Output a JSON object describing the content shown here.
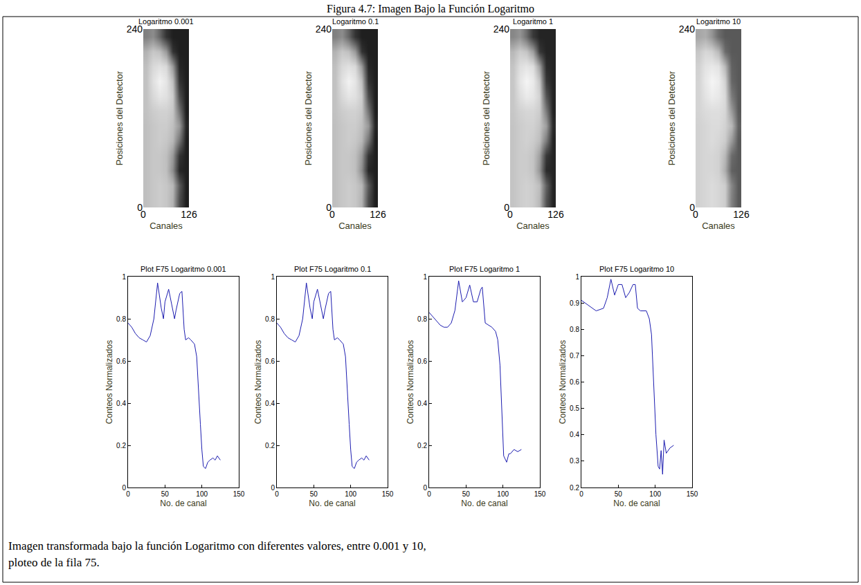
{
  "title": "Figura 4.7: Imagen Bajo la Función Logaritmo",
  "caption": [
    "Imagen transformada bajo la función Logaritmo con diferentes valores, entre 0.001 y 10,",
    "ploteo de la fila 75."
  ],
  "chart_data": [
    {
      "type": "heatmap",
      "title": "Logaritmo 0.001",
      "xlabel": "Canales",
      "ylabel": "Posiciones del Detector",
      "xlim": [
        0,
        126
      ],
      "ylim": [
        0,
        240
      ],
      "xticks": [
        0,
        126
      ],
      "yticks": [
        0,
        240
      ],
      "zlim": [
        0,
        1
      ],
      "x_edges": [
        0,
        18,
        36,
        54,
        72,
        90,
        108,
        126
      ],
      "y_edges": [
        0,
        20,
        40,
        60,
        80,
        100,
        120,
        140,
        160,
        180,
        200,
        220,
        240
      ],
      "cells": [
        [
          0.75,
          0.78,
          0.8,
          0.78,
          0.7,
          0.3,
          0.12
        ],
        [
          0.75,
          0.78,
          0.8,
          0.78,
          0.72,
          0.35,
          0.12
        ],
        [
          0.75,
          0.78,
          0.78,
          0.75,
          0.55,
          0.15,
          0.12
        ],
        [
          0.75,
          0.78,
          0.78,
          0.75,
          0.6,
          0.2,
          0.12
        ],
        [
          0.75,
          0.78,
          0.8,
          0.78,
          0.72,
          0.45,
          0.12
        ],
        [
          0.75,
          0.78,
          0.8,
          0.8,
          0.75,
          0.6,
          0.15
        ],
        [
          0.76,
          0.8,
          0.82,
          0.82,
          0.78,
          0.45,
          0.12
        ],
        [
          0.76,
          0.85,
          0.9,
          0.88,
          0.8,
          0.3,
          0.12
        ],
        [
          0.76,
          0.88,
          0.95,
          0.9,
          0.75,
          0.2,
          0.12
        ],
        [
          0.75,
          0.85,
          0.88,
          0.85,
          0.6,
          0.15,
          0.12
        ],
        [
          0.7,
          0.78,
          0.75,
          0.6,
          0.2,
          0.12,
          0.12
        ],
        [
          0.5,
          0.55,
          0.4,
          0.2,
          0.12,
          0.12,
          0.12
        ]
      ]
    },
    {
      "type": "heatmap",
      "title": "Logaritmo 0.1",
      "xlabel": "Canales",
      "ylabel": "Posiciones del Detector",
      "xlim": [
        0,
        126
      ],
      "ylim": [
        0,
        240
      ],
      "xticks": [
        0,
        126
      ],
      "yticks": [
        0,
        240
      ],
      "zlim": [
        0,
        1
      ],
      "x_edges": [
        0,
        18,
        36,
        54,
        72,
        90,
        108,
        126
      ],
      "y_edges": [
        0,
        20,
        40,
        60,
        80,
        100,
        120,
        140,
        160,
        180,
        200,
        220,
        240
      ],
      "cells": [
        [
          0.75,
          0.78,
          0.8,
          0.78,
          0.7,
          0.3,
          0.12
        ],
        [
          0.75,
          0.78,
          0.8,
          0.78,
          0.72,
          0.35,
          0.12
        ],
        [
          0.75,
          0.78,
          0.78,
          0.75,
          0.55,
          0.15,
          0.12
        ],
        [
          0.75,
          0.78,
          0.78,
          0.75,
          0.6,
          0.2,
          0.12
        ],
        [
          0.75,
          0.78,
          0.8,
          0.78,
          0.72,
          0.45,
          0.12
        ],
        [
          0.75,
          0.78,
          0.8,
          0.8,
          0.75,
          0.6,
          0.15
        ],
        [
          0.76,
          0.8,
          0.82,
          0.82,
          0.78,
          0.45,
          0.12
        ],
        [
          0.76,
          0.85,
          0.9,
          0.88,
          0.8,
          0.3,
          0.12
        ],
        [
          0.76,
          0.88,
          0.95,
          0.9,
          0.75,
          0.2,
          0.12
        ],
        [
          0.75,
          0.85,
          0.88,
          0.85,
          0.6,
          0.15,
          0.12
        ],
        [
          0.7,
          0.78,
          0.75,
          0.6,
          0.2,
          0.12,
          0.12
        ],
        [
          0.5,
          0.55,
          0.4,
          0.2,
          0.12,
          0.12,
          0.12
        ]
      ]
    },
    {
      "type": "heatmap",
      "title": "Logaritmo 1",
      "xlabel": "Canales",
      "ylabel": "Posiciones del Detector",
      "xlim": [
        0,
        126
      ],
      "ylim": [
        0,
        240
      ],
      "xticks": [
        0,
        126
      ],
      "yticks": [
        0,
        240
      ],
      "zlim": [
        0,
        1
      ],
      "x_edges": [
        0,
        18,
        36,
        54,
        72,
        90,
        108,
        126
      ],
      "y_edges": [
        0,
        20,
        40,
        60,
        80,
        100,
        120,
        140,
        160,
        180,
        200,
        220,
        240
      ],
      "cells": [
        [
          0.77,
          0.8,
          0.82,
          0.8,
          0.72,
          0.33,
          0.14
        ],
        [
          0.77,
          0.8,
          0.82,
          0.8,
          0.74,
          0.38,
          0.14
        ],
        [
          0.77,
          0.8,
          0.8,
          0.77,
          0.58,
          0.17,
          0.14
        ],
        [
          0.77,
          0.8,
          0.8,
          0.77,
          0.62,
          0.22,
          0.14
        ],
        [
          0.77,
          0.8,
          0.82,
          0.8,
          0.74,
          0.48,
          0.14
        ],
        [
          0.77,
          0.8,
          0.82,
          0.82,
          0.77,
          0.62,
          0.17
        ],
        [
          0.78,
          0.82,
          0.84,
          0.84,
          0.8,
          0.48,
          0.14
        ],
        [
          0.78,
          0.87,
          0.92,
          0.9,
          0.82,
          0.33,
          0.14
        ],
        [
          0.78,
          0.9,
          0.96,
          0.92,
          0.77,
          0.22,
          0.14
        ],
        [
          0.77,
          0.87,
          0.9,
          0.87,
          0.62,
          0.17,
          0.14
        ],
        [
          0.72,
          0.8,
          0.77,
          0.62,
          0.22,
          0.14,
          0.14
        ],
        [
          0.53,
          0.58,
          0.43,
          0.22,
          0.14,
          0.14,
          0.14
        ]
      ]
    },
    {
      "type": "heatmap",
      "title": "Logaritmo 10",
      "xlabel": "Canales",
      "ylabel": "Posiciones del Detector",
      "xlim": [
        0,
        126
      ],
      "ylim": [
        0,
        240
      ],
      "xticks": [
        0,
        126
      ],
      "yticks": [
        0,
        240
      ],
      "zlim": [
        0,
        1
      ],
      "x_edges": [
        0,
        18,
        36,
        54,
        72,
        90,
        108,
        126
      ],
      "y_edges": [
        0,
        20,
        40,
        60,
        80,
        100,
        120,
        140,
        160,
        180,
        200,
        220,
        240
      ],
      "cells": [
        [
          0.82,
          0.84,
          0.86,
          0.84,
          0.8,
          0.5,
          0.35
        ],
        [
          0.82,
          0.84,
          0.86,
          0.84,
          0.8,
          0.52,
          0.35
        ],
        [
          0.82,
          0.84,
          0.84,
          0.82,
          0.68,
          0.38,
          0.35
        ],
        [
          0.82,
          0.84,
          0.84,
          0.82,
          0.72,
          0.42,
          0.35
        ],
        [
          0.82,
          0.84,
          0.86,
          0.84,
          0.8,
          0.6,
          0.35
        ],
        [
          0.82,
          0.84,
          0.86,
          0.86,
          0.82,
          0.72,
          0.38
        ],
        [
          0.83,
          0.86,
          0.87,
          0.87,
          0.84,
          0.6,
          0.35
        ],
        [
          0.83,
          0.89,
          0.93,
          0.91,
          0.85,
          0.48,
          0.35
        ],
        [
          0.83,
          0.91,
          0.96,
          0.93,
          0.82,
          0.4,
          0.35
        ],
        [
          0.82,
          0.89,
          0.91,
          0.89,
          0.72,
          0.38,
          0.35
        ],
        [
          0.78,
          0.84,
          0.82,
          0.72,
          0.42,
          0.35,
          0.35
        ],
        [
          0.65,
          0.68,
          0.58,
          0.42,
          0.35,
          0.35,
          0.35
        ]
      ]
    },
    {
      "type": "line",
      "title": "Plot F75 Logaritmo 0.001",
      "xlabel": "No. de canal",
      "ylabel": "Conteos Normalizados",
      "xlim": [
        0,
        150
      ],
      "ylim": [
        0,
        1
      ],
      "xticks": [
        0,
        50,
        100,
        150
      ],
      "yticks": [
        0,
        0.2,
        0.4,
        0.6,
        0.8,
        1
      ],
      "color": "#1c1cb0",
      "grid": false,
      "x": [
        0,
        5,
        10,
        15,
        20,
        25,
        30,
        35,
        40,
        45,
        48,
        50,
        55,
        60,
        63,
        65,
        70,
        73,
        76,
        78,
        82,
        85,
        90,
        93,
        96,
        98,
        100,
        102,
        105,
        108,
        111,
        115,
        118,
        121,
        125
      ],
      "values": [
        0.78,
        0.76,
        0.73,
        0.71,
        0.7,
        0.69,
        0.72,
        0.8,
        0.97,
        0.85,
        0.8,
        0.88,
        0.94,
        0.85,
        0.8,
        0.84,
        0.92,
        0.93,
        0.75,
        0.7,
        0.71,
        0.7,
        0.68,
        0.62,
        0.45,
        0.3,
        0.18,
        0.1,
        0.09,
        0.12,
        0.13,
        0.14,
        0.13,
        0.15,
        0.13
      ]
    },
    {
      "type": "line",
      "title": "Plot F75 Logaritmo 0.1",
      "xlabel": "No. de canal",
      "ylabel": "Conteos Normalizados",
      "xlim": [
        0,
        150
      ],
      "ylim": [
        0,
        1
      ],
      "xticks": [
        0,
        50,
        100,
        150
      ],
      "yticks": [
        0,
        0.2,
        0.4,
        0.6,
        0.8,
        1
      ],
      "color": "#1c1cb0",
      "grid": false,
      "x": [
        0,
        5,
        10,
        15,
        20,
        25,
        30,
        35,
        40,
        45,
        48,
        50,
        55,
        60,
        63,
        65,
        70,
        73,
        76,
        78,
        82,
        85,
        90,
        93,
        96,
        98,
        100,
        102,
        105,
        108,
        111,
        115,
        118,
        121,
        125
      ],
      "values": [
        0.78,
        0.76,
        0.73,
        0.71,
        0.7,
        0.69,
        0.72,
        0.8,
        0.97,
        0.85,
        0.8,
        0.88,
        0.94,
        0.85,
        0.8,
        0.84,
        0.92,
        0.93,
        0.75,
        0.7,
        0.71,
        0.7,
        0.68,
        0.62,
        0.45,
        0.3,
        0.18,
        0.1,
        0.09,
        0.12,
        0.13,
        0.14,
        0.13,
        0.15,
        0.13
      ]
    },
    {
      "type": "line",
      "title": "Plot F75 Logaritmo 1",
      "xlabel": "No. de canal",
      "ylabel": "Conteos Normalizados",
      "xlim": [
        0,
        150
      ],
      "ylim": [
        0,
        1
      ],
      "xticks": [
        0,
        50,
        100,
        150
      ],
      "yticks": [
        0,
        0.2,
        0.4,
        0.6,
        0.8,
        1
      ],
      "color": "#1c1cb0",
      "grid": false,
      "x": [
        0,
        5,
        10,
        15,
        20,
        25,
        30,
        35,
        40,
        45,
        50,
        55,
        60,
        65,
        70,
        72,
        76,
        80,
        85,
        90,
        93,
        96,
        98,
        101,
        105,
        108,
        110,
        115,
        120,
        125
      ],
      "values": [
        0.83,
        0.81,
        0.79,
        0.77,
        0.76,
        0.76,
        0.78,
        0.84,
        0.98,
        0.88,
        0.9,
        0.96,
        0.88,
        0.88,
        0.94,
        0.95,
        0.78,
        0.77,
        0.76,
        0.74,
        0.7,
        0.58,
        0.4,
        0.15,
        0.12,
        0.16,
        0.16,
        0.18,
        0.17,
        0.18
      ]
    },
    {
      "type": "line",
      "title": "Plot F75 Logaritmo 10",
      "xlabel": "No. de canal",
      "ylabel": "Conteos Normalizados",
      "xlim": [
        0,
        150
      ],
      "ylim": [
        0.2,
        1
      ],
      "xticks": [
        0,
        50,
        100,
        150
      ],
      "yticks": [
        0.2,
        0.3,
        0.4,
        0.5,
        0.6,
        0.7,
        0.8,
        0.9,
        1
      ],
      "color": "#1c1cb0",
      "grid": false,
      "x": [
        0,
        10,
        20,
        30,
        35,
        40,
        45,
        50,
        55,
        60,
        65,
        70,
        73,
        76,
        80,
        88,
        92,
        95,
        98,
        101,
        104,
        106,
        108,
        110,
        112,
        115,
        120,
        125
      ],
      "values": [
        0.91,
        0.89,
        0.87,
        0.88,
        0.92,
        0.99,
        0.93,
        0.97,
        0.97,
        0.92,
        0.94,
        0.97,
        0.97,
        0.88,
        0.87,
        0.87,
        0.84,
        0.78,
        0.6,
        0.4,
        0.28,
        0.27,
        0.34,
        0.25,
        0.38,
        0.33,
        0.35,
        0.36
      ]
    }
  ]
}
